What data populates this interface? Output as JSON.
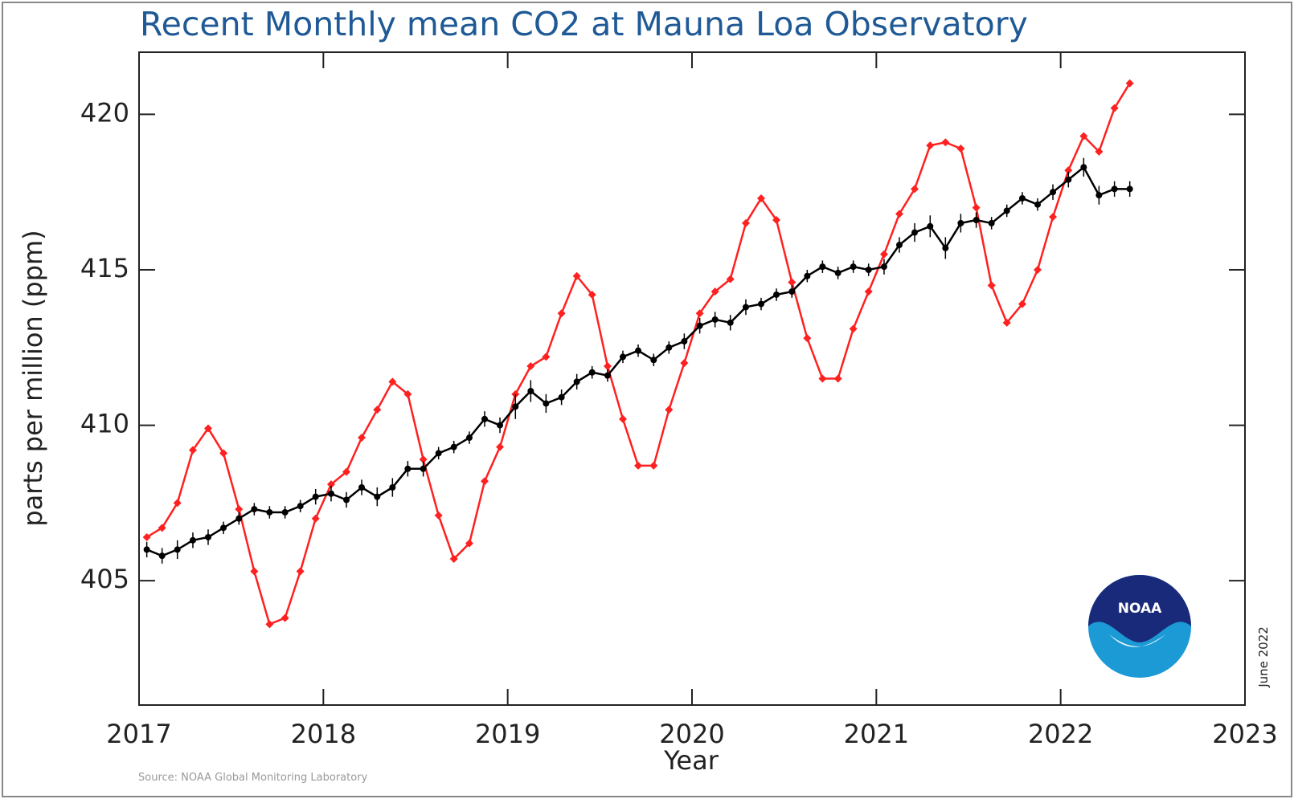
{
  "chart_data": {
    "type": "line",
    "title": "Recent Monthly mean CO2 at Mauna Loa Observatory",
    "ylabel": "parts per million (ppm)",
    "xlabel": "Year",
    "source": "Source: NOAA Global Monitoring Laboratory",
    "date_note": "June 2022",
    "logo": "NOAA",
    "xlim": [
      2017,
      2023
    ],
    "xticks": [
      2017,
      2018,
      2019,
      2020,
      2021,
      2022,
      2023
    ],
    "ylim": [
      401,
      422
    ],
    "yticks": [
      405,
      410,
      415,
      420
    ],
    "x": [
      2017.042,
      2017.125,
      2017.208,
      2017.292,
      2017.375,
      2017.458,
      2017.542,
      2017.625,
      2017.708,
      2017.792,
      2017.875,
      2017.958,
      2018.042,
      2018.125,
      2018.208,
      2018.292,
      2018.375,
      2018.458,
      2018.542,
      2018.625,
      2018.708,
      2018.792,
      2018.875,
      2018.958,
      2019.042,
      2019.125,
      2019.208,
      2019.292,
      2019.375,
      2019.458,
      2019.542,
      2019.625,
      2019.708,
      2019.792,
      2019.875,
      2019.958,
      2020.042,
      2020.125,
      2020.208,
      2020.292,
      2020.375,
      2020.458,
      2020.542,
      2020.625,
      2020.708,
      2020.792,
      2020.875,
      2020.958,
      2021.042,
      2021.125,
      2021.208,
      2021.292,
      2021.375,
      2021.458,
      2021.542,
      2021.625,
      2021.708,
      2021.792,
      2021.875,
      2021.958,
      2022.042,
      2022.125,
      2022.208,
      2022.292,
      2022.375
    ],
    "series": [
      {
        "color": "#ff2020",
        "marker": "diamond",
        "values": [
          406.4,
          406.7,
          407.5,
          409.2,
          409.9,
          409.1,
          407.3,
          405.3,
          403.6,
          403.8,
          405.3,
          407.0,
          408.1,
          408.5,
          409.6,
          410.5,
          411.4,
          411.0,
          408.9,
          407.1,
          405.7,
          406.2,
          408.2,
          409.3,
          411.0,
          411.9,
          412.2,
          413.6,
          414.8,
          414.2,
          411.9,
          410.2,
          408.7,
          408.7,
          410.5,
          412.0,
          413.6,
          414.3,
          414.7,
          416.5,
          417.3,
          416.6,
          414.6,
          412.8,
          411.5,
          411.5,
          413.1,
          414.3,
          415.5,
          416.8,
          417.6,
          419.0,
          419.1,
          418.9,
          417.0,
          414.5,
          413.3,
          413.9,
          415.0,
          416.7,
          418.2,
          419.3,
          418.8,
          420.2,
          421.0
        ]
      },
      {
        "color": "#000000",
        "marker": "circle",
        "values": [
          406.0,
          405.8,
          406.0,
          406.3,
          406.4,
          406.7,
          407.0,
          407.3,
          407.2,
          407.2,
          407.4,
          407.7,
          407.8,
          407.6,
          408.0,
          407.7,
          408.0,
          408.6,
          408.6,
          409.1,
          409.3,
          409.6,
          410.2,
          410.0,
          410.6,
          411.1,
          410.7,
          410.9,
          411.4,
          411.7,
          411.6,
          412.2,
          412.4,
          412.1,
          412.5,
          412.7,
          413.2,
          413.4,
          413.3,
          413.8,
          413.9,
          414.2,
          414.3,
          414.8,
          415.1,
          414.9,
          415.1,
          415.0,
          415.1,
          415.8,
          416.2,
          416.4,
          415.7,
          416.5,
          416.6,
          416.5,
          416.9,
          417.3,
          417.1,
          417.5,
          417.9,
          418.3,
          417.4,
          417.6,
          417.6
        ],
        "errors": [
          0.25,
          0.25,
          0.3,
          0.25,
          0.25,
          0.2,
          0.2,
          0.2,
          0.2,
          0.2,
          0.2,
          0.25,
          0.25,
          0.25,
          0.25,
          0.3,
          0.3,
          0.25,
          0.25,
          0.2,
          0.2,
          0.2,
          0.25,
          0.25,
          0.4,
          0.35,
          0.3,
          0.25,
          0.25,
          0.2,
          0.2,
          0.2,
          0.2,
          0.2,
          0.2,
          0.25,
          0.25,
          0.25,
          0.25,
          0.25,
          0.2,
          0.2,
          0.2,
          0.2,
          0.2,
          0.2,
          0.2,
          0.2,
          0.25,
          0.25,
          0.3,
          0.35,
          0.35,
          0.3,
          0.25,
          0.2,
          0.2,
          0.2,
          0.2,
          0.25,
          0.25,
          0.3,
          0.3,
          0.25,
          0.25
        ]
      }
    ]
  }
}
